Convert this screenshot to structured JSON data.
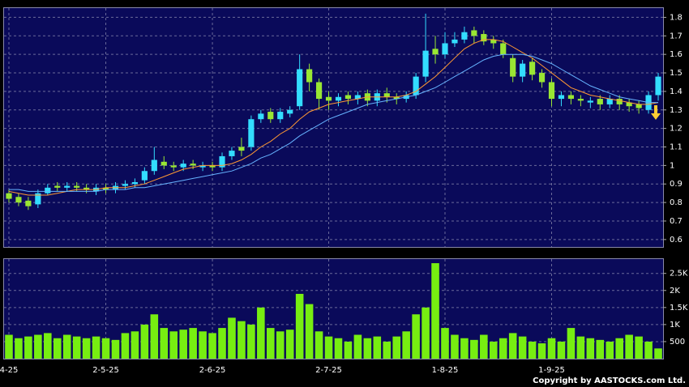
{
  "chart_data": {
    "type": "candlestick",
    "copyright": "Copyright by AASTOCKS.com Ltd.",
    "categories": [
      "4-25",
      null,
      null,
      null,
      null,
      null,
      null,
      null,
      null,
      null,
      "2-5-25",
      null,
      null,
      null,
      null,
      null,
      null,
      null,
      null,
      null,
      null,
      "2-6-25",
      null,
      null,
      null,
      null,
      null,
      null,
      null,
      null,
      null,
      null,
      null,
      "2-7-25",
      null,
      null,
      null,
      null,
      null,
      null,
      null,
      null,
      null,
      null,
      null,
      "1-8-25",
      null,
      null,
      null,
      null,
      null,
      null,
      null,
      null,
      null,
      null,
      "1-9-25",
      null,
      null,
      null,
      null,
      null,
      null,
      null,
      null,
      null,
      null,
      null
    ],
    "open": [
      0.85,
      0.83,
      0.81,
      0.79,
      0.85,
      0.89,
      0.88,
      0.89,
      0.88,
      0.86,
      0.88,
      0.87,
      0.89,
      0.9,
      0.92,
      0.97,
      1.02,
      1.0,
      0.99,
      1.01,
      0.99,
      1.0,
      0.99,
      1.05,
      1.1,
      1.1,
      1.25,
      1.29,
      1.25,
      1.28,
      1.32,
      1.52,
      1.45,
      1.37,
      1.35,
      1.38,
      1.36,
      1.39,
      1.35,
      1.39,
      1.37,
      1.36,
      1.38,
      1.48,
      1.63,
      1.6,
      1.66,
      1.68,
      1.73,
      1.71,
      1.68,
      1.66,
      1.58,
      1.48,
      1.56,
      1.5,
      1.45,
      1.36,
      1.38,
      1.36,
      1.34,
      1.36,
      1.33,
      1.36,
      1.34,
      1.33,
      1.3,
      1.38
    ],
    "high": [
      0.87,
      0.85,
      0.83,
      0.87,
      0.9,
      0.91,
      0.91,
      0.91,
      0.9,
      0.9,
      0.9,
      0.91,
      0.92,
      0.93,
      0.99,
      1.1,
      1.05,
      1.02,
      1.03,
      1.03,
      1.02,
      1.02,
      1.07,
      1.1,
      1.15,
      1.27,
      1.3,
      1.31,
      1.31,
      1.32,
      1.6,
      1.55,
      1.47,
      1.4,
      1.39,
      1.4,
      1.4,
      1.41,
      1.41,
      1.42,
      1.39,
      1.4,
      1.5,
      1.82,
      1.7,
      1.72,
      1.72,
      1.75,
      1.75,
      1.73,
      1.7,
      1.68,
      1.6,
      1.57,
      1.58,
      1.52,
      1.47,
      1.4,
      1.4,
      1.38,
      1.37,
      1.38,
      1.38,
      1.38,
      1.36,
      1.35,
      1.4,
      1.5
    ],
    "low": [
      0.8,
      0.78,
      0.76,
      0.77,
      0.84,
      0.86,
      0.86,
      0.86,
      0.85,
      0.84,
      0.85,
      0.85,
      0.87,
      0.88,
      0.9,
      0.95,
      0.98,
      0.97,
      0.97,
      0.98,
      0.97,
      0.97,
      0.97,
      1.03,
      1.05,
      1.08,
      1.23,
      1.23,
      1.23,
      1.26,
      1.3,
      1.4,
      1.3,
      1.3,
      1.32,
      1.33,
      1.33,
      1.32,
      1.32,
      1.34,
      1.33,
      1.34,
      1.36,
      1.45,
      1.55,
      1.58,
      1.64,
      1.66,
      1.66,
      1.65,
      1.63,
      1.58,
      1.45,
      1.45,
      1.46,
      1.42,
      1.32,
      1.32,
      1.33,
      1.32,
      1.31,
      1.3,
      1.31,
      1.3,
      1.29,
      1.28,
      1.28,
      1.35
    ],
    "close": [
      0.82,
      0.8,
      0.78,
      0.85,
      0.88,
      0.88,
      0.89,
      0.88,
      0.87,
      0.88,
      0.87,
      0.89,
      0.9,
      0.91,
      0.97,
      1.03,
      1.0,
      0.99,
      1.01,
      1.0,
      1.0,
      0.99,
      1.05,
      1.08,
      1.08,
      1.25,
      1.28,
      1.25,
      1.29,
      1.3,
      1.52,
      1.45,
      1.36,
      1.35,
      1.37,
      1.36,
      1.38,
      1.35,
      1.39,
      1.37,
      1.36,
      1.38,
      1.48,
      1.62,
      1.6,
      1.66,
      1.68,
      1.72,
      1.7,
      1.67,
      1.66,
      1.6,
      1.48,
      1.55,
      1.49,
      1.45,
      1.36,
      1.38,
      1.36,
      1.35,
      1.35,
      1.33,
      1.36,
      1.33,
      1.32,
      1.31,
      1.38,
      1.48
    ],
    "up_color": "#33ddff",
    "down_color": "#99e633",
    "series": [
      {
        "color": "#ff9933",
        "values": [
          0.86,
          0.85,
          0.84,
          0.84,
          0.84,
          0.85,
          0.86,
          0.87,
          0.87,
          0.87,
          0.88,
          0.88,
          0.88,
          0.89,
          0.9,
          0.92,
          0.94,
          0.96,
          0.98,
          0.99,
          1.0,
          1.0,
          1.0,
          1.01,
          1.03,
          1.06,
          1.1,
          1.13,
          1.17,
          1.2,
          1.25,
          1.29,
          1.31,
          1.33,
          1.34,
          1.35,
          1.36,
          1.37,
          1.37,
          1.37,
          1.37,
          1.38,
          1.4,
          1.44,
          1.48,
          1.53,
          1.58,
          1.63,
          1.66,
          1.68,
          1.68,
          1.67,
          1.64,
          1.61,
          1.58,
          1.54,
          1.5,
          1.46,
          1.42,
          1.4,
          1.38,
          1.37,
          1.36,
          1.35,
          1.34,
          1.33,
          1.33,
          1.34
        ]
      },
      {
        "color": "#66b3ff",
        "values": [
          0.87,
          0.87,
          0.86,
          0.86,
          0.86,
          0.86,
          0.86,
          0.86,
          0.86,
          0.86,
          0.87,
          0.87,
          0.87,
          0.88,
          0.88,
          0.89,
          0.9,
          0.91,
          0.92,
          0.93,
          0.94,
          0.95,
          0.96,
          0.97,
          0.99,
          1.01,
          1.04,
          1.06,
          1.09,
          1.12,
          1.16,
          1.19,
          1.22,
          1.25,
          1.27,
          1.29,
          1.31,
          1.33,
          1.34,
          1.35,
          1.36,
          1.37,
          1.38,
          1.4,
          1.42,
          1.45,
          1.48,
          1.51,
          1.54,
          1.57,
          1.59,
          1.6,
          1.6,
          1.6,
          1.59,
          1.57,
          1.55,
          1.52,
          1.49,
          1.46,
          1.43,
          1.41,
          1.39,
          1.37,
          1.36,
          1.35,
          1.34,
          1.34
        ]
      }
    ],
    "ylim": [
      0.56,
      1.85
    ],
    "yticks": [
      0.6,
      0.7,
      0.8,
      0.9,
      1,
      1.1,
      1.2,
      1.3,
      1.4,
      1.5,
      1.6,
      1.7,
      1.8
    ],
    "volume": [
      700,
      600,
      650,
      700,
      750,
      600,
      700,
      650,
      600,
      650,
      600,
      550,
      750,
      800,
      1000,
      1300,
      900,
      800,
      850,
      900,
      800,
      750,
      900,
      1200,
      1100,
      1000,
      1500,
      900,
      800,
      850,
      1900,
      1600,
      800,
      650,
      600,
      500,
      700,
      600,
      650,
      500,
      650,
      800,
      1300,
      1500,
      2800,
      900,
      700,
      600,
      550,
      700,
      500,
      600,
      750,
      650,
      500,
      450,
      600,
      500,
      900,
      650,
      600,
      550,
      500,
      600,
      700,
      650,
      500,
      300
    ],
    "volume_color": "#77ee11",
    "volume_ylim": [
      0,
      2920
    ],
    "volume_yticks": [
      {
        "value": 500,
        "label": "500"
      },
      {
        "value": 1000,
        "label": "1K"
      },
      {
        "value": 1500,
        "label": "1.5K"
      },
      {
        "value": 2000,
        "label": "2K"
      },
      {
        "value": 2500,
        "label": "2.5K"
      }
    ],
    "grid": true
  }
}
